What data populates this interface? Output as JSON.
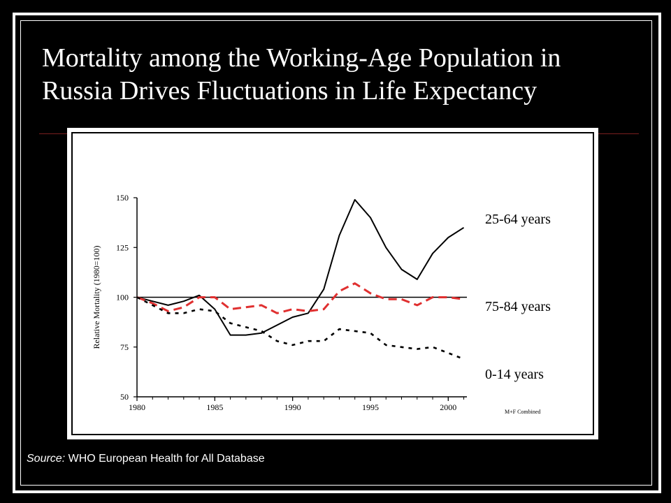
{
  "slide": {
    "title_line1": "Mortality among the Working-Age Population in",
    "title_line2": "Russia Drives Fluctuations in Life Expectancy",
    "source_label": "Source:",
    "source_text": " WHO European Health for All Database"
  },
  "chart_data": {
    "type": "line",
    "ylabel": "Relative Mortality (1980=100)",
    "xlabel": "",
    "xlim": [
      1980,
      2001.2
    ],
    "ylim": [
      50,
      150
    ],
    "x_ticks": [
      "1980",
      "1985",
      "1990",
      "1995",
      "2000"
    ],
    "y_ticks": [
      "50",
      "75",
      "100",
      "125",
      "150"
    ],
    "note": "M+F Combined",
    "reference_line": 100,
    "x": [
      1980,
      1981,
      1982,
      1983,
      1984,
      1985,
      1986,
      1987,
      1988,
      1989,
      1990,
      1991,
      1992,
      1993,
      1994,
      1995,
      1996,
      1997,
      1998,
      1999,
      2000,
      2001
    ],
    "series": [
      {
        "name": "25-64 years",
        "style": "solid",
        "color": "#000000",
        "values": [
          100,
          98,
          96,
          98,
          101,
          94,
          81,
          81,
          82,
          86,
          90,
          92,
          104,
          131,
          149,
          140,
          125,
          114,
          109,
          122,
          130,
          135
        ]
      },
      {
        "name": "75-84 years",
        "style": "dashed",
        "color": "#e03030",
        "values": [
          100,
          97,
          93,
          95,
          100,
          100,
          94,
          95,
          96,
          92,
          94,
          93,
          94,
          103,
          107,
          102,
          99,
          99,
          96,
          100,
          100,
          99
        ]
      },
      {
        "name": "0-14 years",
        "style": "dotted",
        "color": "#000000",
        "values": [
          100,
          96,
          92,
          92,
          94,
          93,
          87,
          85,
          83,
          78,
          76,
          78,
          78,
          84,
          83,
          82,
          76,
          75,
          74,
          75,
          72,
          69
        ]
      }
    ]
  }
}
